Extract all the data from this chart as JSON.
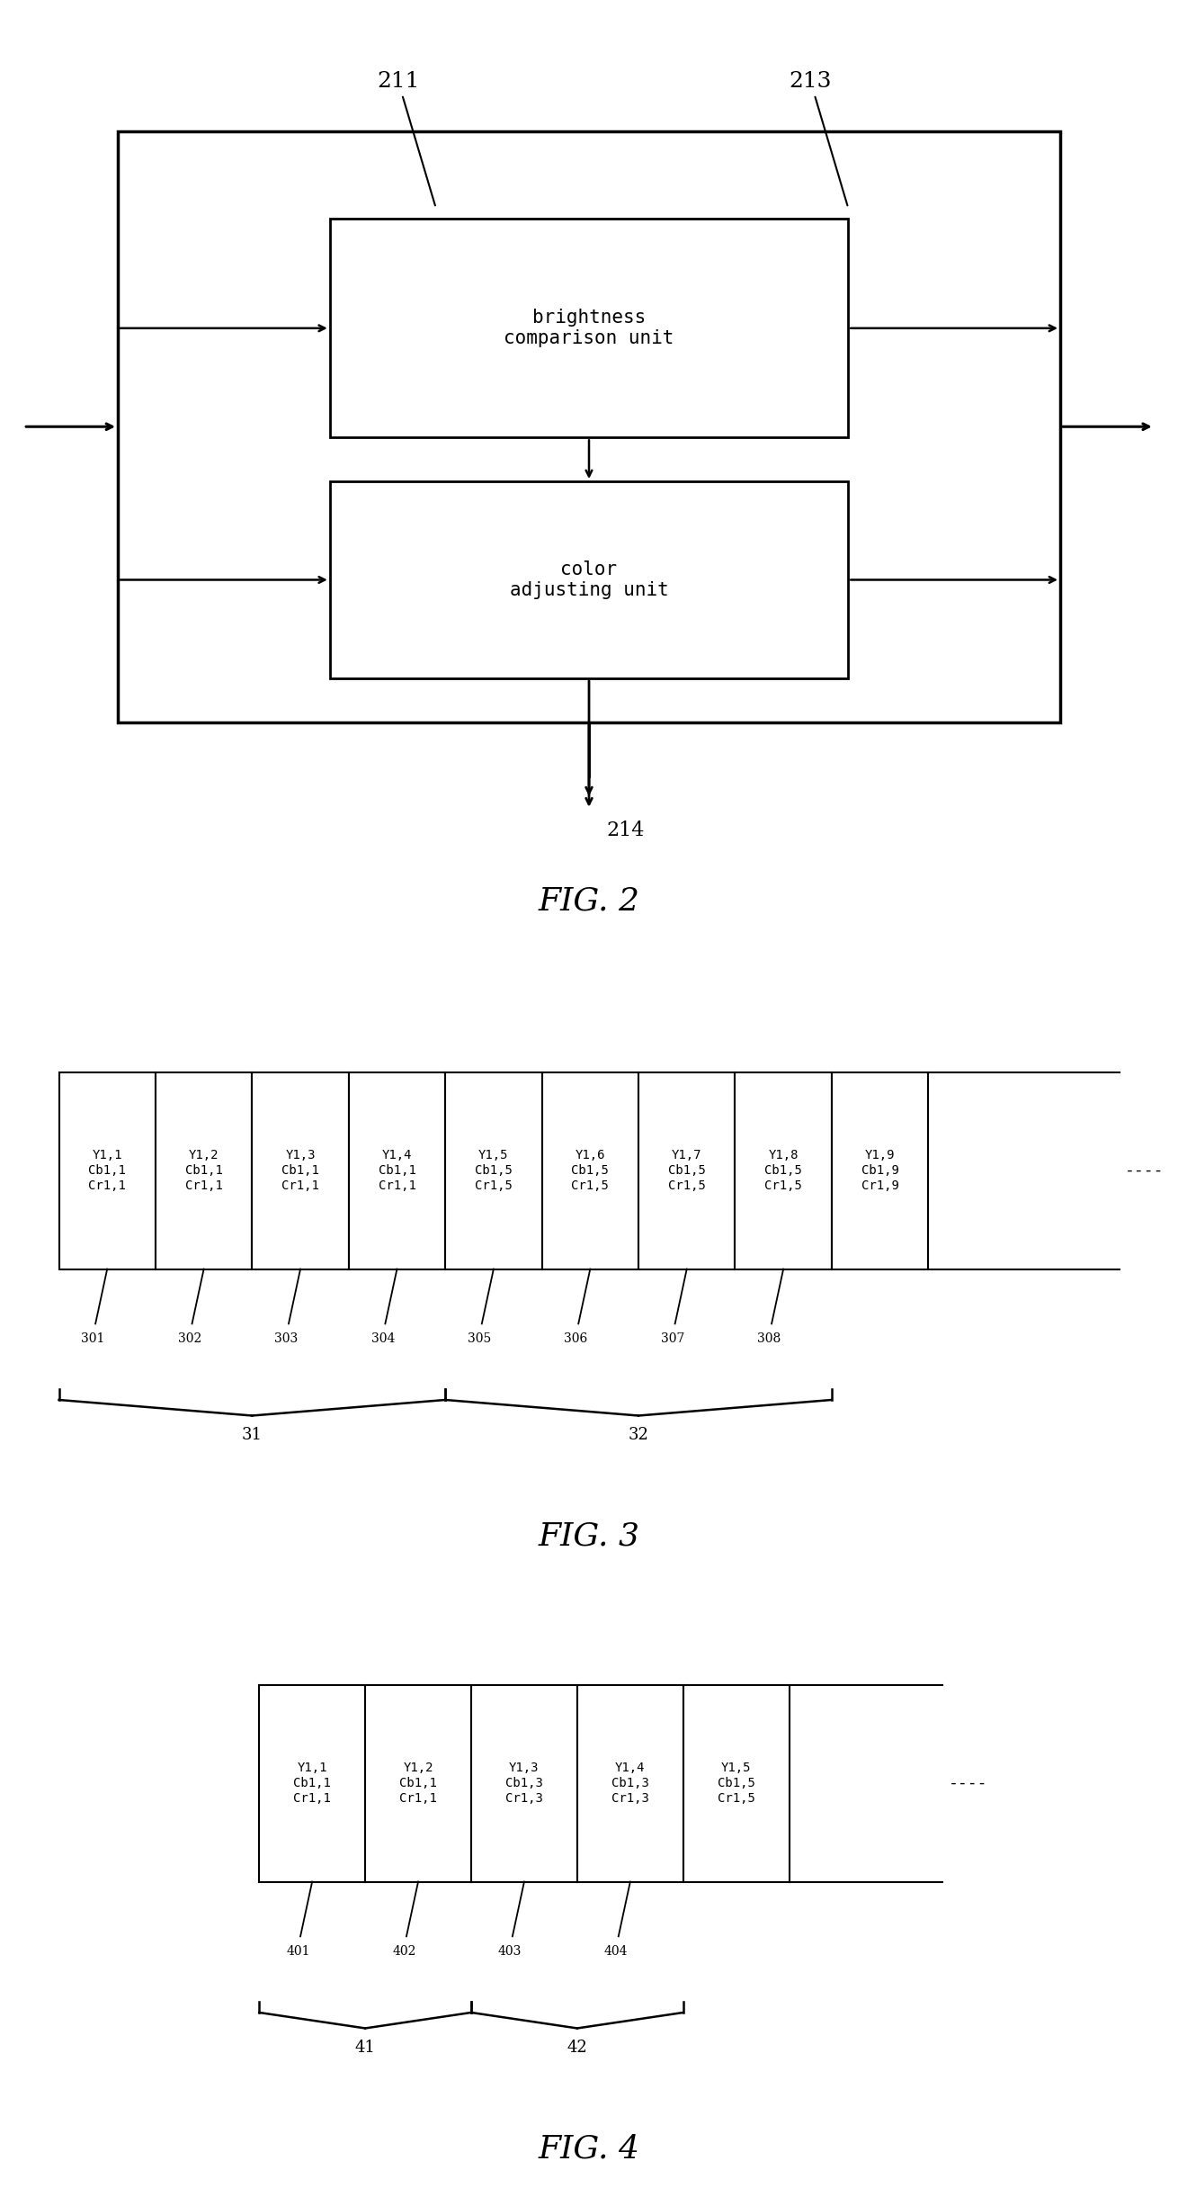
{
  "fig2": {
    "brightness_label": "brightness\ncomparison unit",
    "color_label": "color\nadjusting unit",
    "label_211": "211",
    "label_213": "213",
    "label_214": "214",
    "title": "FIG. 2"
  },
  "fig3": {
    "cell_labels_raw": [
      [
        "Y1,1",
        "Cb1,1",
        "Cr1,1"
      ],
      [
        "Y1,2",
        "Cb1,1",
        "Cr1,1"
      ],
      [
        "Y1,3",
        "Cb1,1",
        "Cr1,1"
      ],
      [
        "Y1,4",
        "Cb1,1",
        "Cr1,1"
      ],
      [
        "Y1,5",
        "Cb1,5",
        "Cr1,5"
      ],
      [
        "Y1,6",
        "Cb1,5",
        "Cr1,5"
      ],
      [
        "Y1,7",
        "Cb1,5",
        "Cr1,5"
      ],
      [
        "Y1,8",
        "Cb1,5",
        "Cr1,5"
      ],
      [
        "Y1,9",
        "Cb1,9",
        "Cr1,9"
      ]
    ],
    "num_cells": 9,
    "tick_labels": [
      "301",
      "302",
      "303",
      "304",
      "305",
      "306",
      "307",
      "308"
    ],
    "brace1_label": "31",
    "brace2_label": "32",
    "title": "FIG. 3"
  },
  "fig4": {
    "cell_labels_raw": [
      [
        "Y1,1",
        "Cb1,1",
        "Cr1,1"
      ],
      [
        "Y1,2",
        "Cb1,1",
        "Cr1,1"
      ],
      [
        "Y1,3",
        "Cb1,3",
        "Cr1,3"
      ],
      [
        "Y1,4",
        "Cb1,3",
        "Cr1,3"
      ],
      [
        "Y1,5",
        "Cb1,5",
        "Cr1,5"
      ]
    ],
    "num_cells": 5,
    "tick_labels": [
      "401",
      "402",
      "403",
      "404"
    ],
    "brace1_label": "41",
    "brace2_label": "42",
    "title": "FIG. 4"
  },
  "bg_color": "#ffffff",
  "line_color": "#000000",
  "font_mono": "monospace",
  "font_serif": "serif"
}
